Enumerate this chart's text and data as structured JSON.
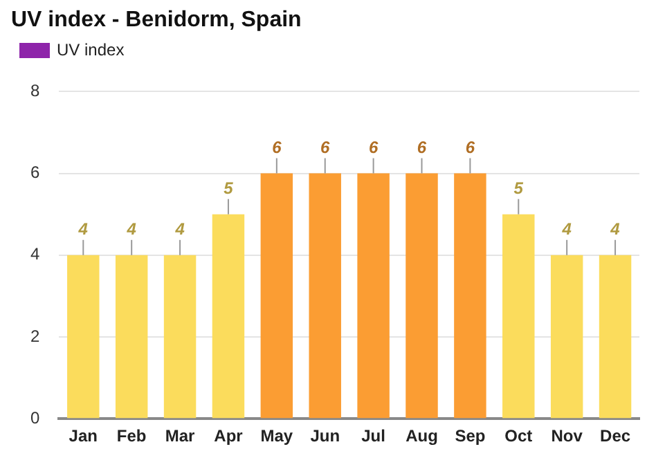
{
  "chart_data": {
    "type": "bar",
    "title": "UV index - Benidorm, Spain",
    "categories": [
      "Jan",
      "Feb",
      "Mar",
      "Apr",
      "May",
      "Jun",
      "Jul",
      "Aug",
      "Sep",
      "Oct",
      "Nov",
      "Dec"
    ],
    "series": [
      {
        "name": "UV index",
        "color": "#8e24aa",
        "colors": [
          "#fbdc5c",
          "#fbdc5c",
          "#fbdc5c",
          "#fbdc5c",
          "#fb9d33",
          "#fb9d33",
          "#fb9d33",
          "#fb9d33",
          "#fb9d33",
          "#fbdc5c",
          "#fbdc5c",
          "#fbdc5c"
        ],
        "values": [
          4,
          4,
          4,
          5,
          6,
          6,
          6,
          6,
          6,
          5,
          4,
          4
        ]
      }
    ],
    "ylim": [
      0,
      8
    ],
    "yticks": [
      0,
      2,
      4,
      6,
      8
    ],
    "grid": "y",
    "legend": "top left",
    "data_labels": true
  }
}
